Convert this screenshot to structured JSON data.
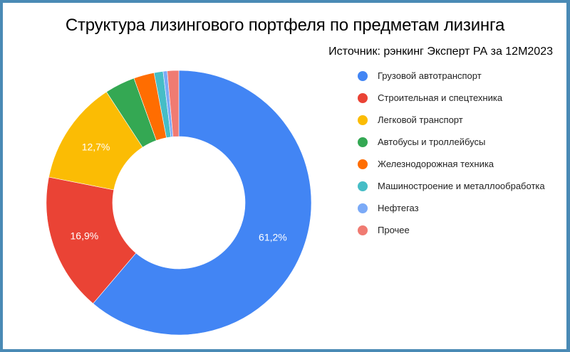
{
  "chart_data": {
    "type": "pie",
    "variant": "donut",
    "title": "Структура лизингового портфеля по предметам лизинга",
    "subtitle": "Источник: рэнкинг Эксперт РА за 12М2023",
    "legend_position": "right",
    "categories": [
      "Грузовой автотранспорт",
      "Строительная и спецтехника",
      "Легковой транспорт",
      "Автобусы и троллейбусы",
      "Железнодорожная техника",
      "Машиностроение и металлообработка",
      "Нефтегаз",
      "Прочее"
    ],
    "values": [
      61.2,
      16.9,
      12.7,
      3.7,
      2.5,
      1.1,
      0.5,
      1.4
    ],
    "value_labels": [
      "61,2%",
      "16,9%",
      "12,7%",
      "",
      "",
      "",
      "",
      ""
    ],
    "colors": [
      "#4285f4",
      "#ea4335",
      "#fbbc04",
      "#34a853",
      "#ff6d01",
      "#46bdc6",
      "#7baaf7",
      "#f07b72"
    ],
    "unit": "%"
  },
  "header": {
    "title": "Структура лизингового портфеля по предметам лизинга",
    "subtitle": "Источник: рэнкинг Эксперт РА за 12М2023"
  },
  "legend": {
    "items": [
      {
        "label": "Грузовой автотранспорт",
        "color": "#4285f4"
      },
      {
        "label": "Строительная и спецтехника",
        "color": "#ea4335"
      },
      {
        "label": "Легковой транспорт",
        "color": "#fbbc04"
      },
      {
        "label": "Автобусы и троллейбусы",
        "color": "#34a853"
      },
      {
        "label": "Железнодорожная техника",
        "color": "#ff6d01"
      },
      {
        "label": "Машиностроение и металлообработка",
        "color": "#46bdc6"
      },
      {
        "label": "Нефтегаз",
        "color": "#7baaf7"
      },
      {
        "label": "Прочее",
        "color": "#f07b72"
      }
    ]
  },
  "style": {
    "frame_border_color": "#4a8ab5",
    "label_color": "#ffffff"
  }
}
